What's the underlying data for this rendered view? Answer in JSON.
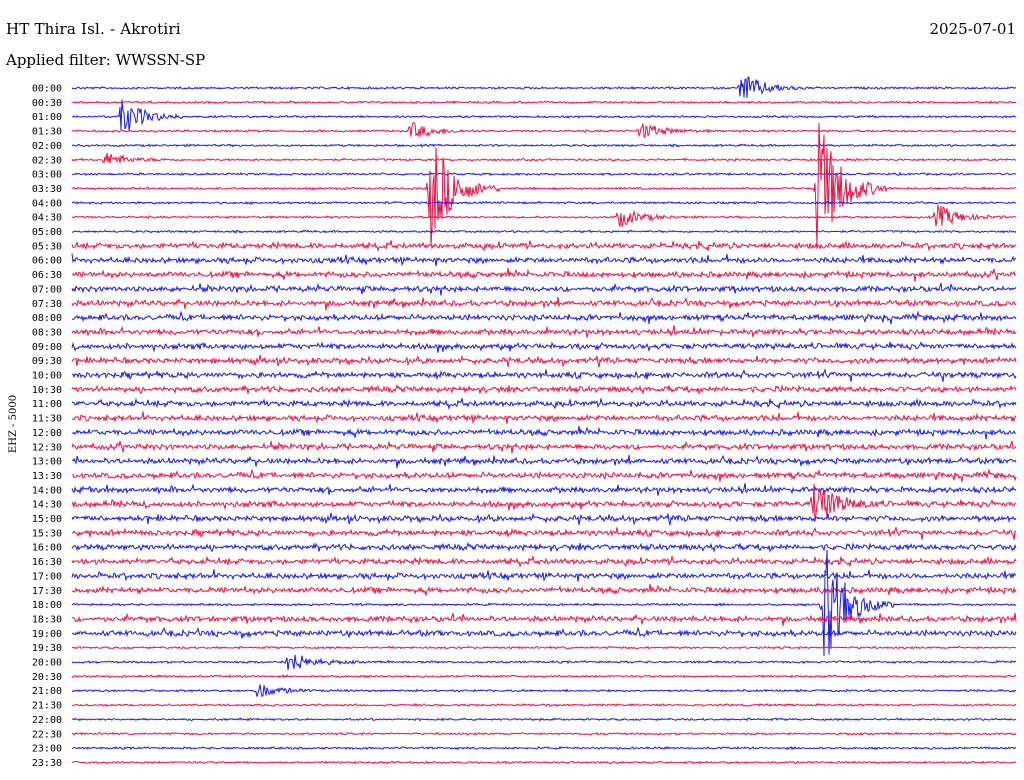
{
  "header": {
    "station": "HT Thira Isl. - Akrotiri",
    "date": "2025-07-01",
    "filter_text": "Applied filter: WWSSN-SP"
  },
  "chart_data": {
    "type": "line",
    "plot_kind": "helicorder",
    "channel_label": "EHZ - 5000",
    "row_labels": [
      "00:00",
      "00:30",
      "01:00",
      "01:30",
      "02:00",
      "02:30",
      "03:00",
      "03:30",
      "04:00",
      "04:30",
      "05:00",
      "05:30",
      "06:00",
      "06:30",
      "07:00",
      "07:30",
      "08:00",
      "08:30",
      "09:00",
      "09:30",
      "10:00",
      "10:30",
      "11:00",
      "11:30",
      "12:00",
      "12:30",
      "13:00",
      "13:30",
      "14:00",
      "14:30",
      "15:00",
      "15:30",
      "16:00",
      "16:30",
      "17:00",
      "17:30",
      "18:00",
      "18:30",
      "19:00",
      "19:30",
      "20:00",
      "20:30",
      "21:00",
      "21:30",
      "22:00",
      "22:30",
      "23:00",
      "23:30"
    ],
    "row_colors": [
      "#1a1aee",
      "#ee1144"
    ],
    "events": [
      {
        "row": "00:00",
        "x_min": 21.3,
        "amplitude": 1.1
      },
      {
        "row": "01:00",
        "x_min": 1.6,
        "amplitude": 1.3
      },
      {
        "row": "01:30",
        "x_min": 10.8,
        "amplitude": 0.6
      },
      {
        "row": "01:30",
        "x_min": 18.1,
        "amplitude": 0.6
      },
      {
        "row": "02:30",
        "x_min": 1.1,
        "amplitude": 0.5
      },
      {
        "row": "03:30",
        "x_min": 11.4,
        "amplitude": 4.2
      },
      {
        "row": "03:30",
        "x_min": 23.7,
        "amplitude": 5.5
      },
      {
        "row": "04:30",
        "x_min": 17.4,
        "amplitude": 0.7
      },
      {
        "row": "04:30",
        "x_min": 27.5,
        "amplitude": 0.9
      },
      {
        "row": "14:30",
        "x_min": 23.6,
        "amplitude": 1.6
      },
      {
        "row": "18:00",
        "x_min": 23.9,
        "amplitude": 1.7
      },
      {
        "row": "18:00",
        "x_min": 23.9,
        "amplitude": 3.0
      },
      {
        "row": "20:00",
        "x_min": 6.9,
        "amplitude": 0.8
      },
      {
        "row": "21:00",
        "x_min": 5.9,
        "amplitude": 0.5
      }
    ],
    "noisy_rows": [
      "05:30",
      "06:00",
      "06:30",
      "07:00",
      "07:30",
      "08:00",
      "08:30",
      "09:00",
      "09:30",
      "10:00",
      "10:30",
      "11:00",
      "11:30",
      "12:00",
      "12:30",
      "13:00",
      "13:30",
      "14:00",
      "14:30",
      "15:00",
      "15:30",
      "16:00",
      "16:30",
      "17:00",
      "17:30",
      "18:30",
      "19:00"
    ],
    "grid": false,
    "legend": "none"
  }
}
